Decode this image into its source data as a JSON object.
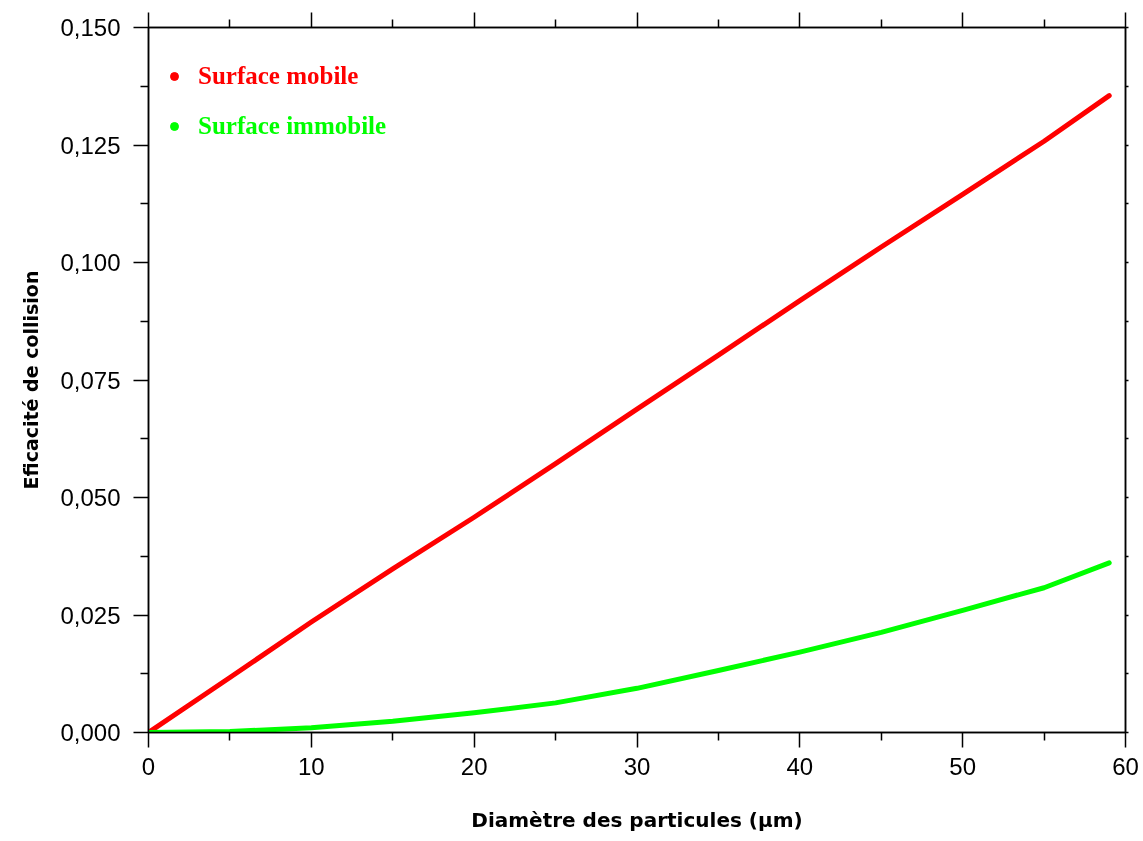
{
  "chart_data": {
    "type": "line",
    "xlabel": "Diamètre des particules (μm)",
    "ylabel": "Eficacité de collision",
    "xlim": [
      0,
      60
    ],
    "ylim": [
      0,
      0.15
    ],
    "xticks": [
      0,
      {
        "value": 5,
        "label": null
      },
      10,
      {
        "value": 15,
        "label": null
      },
      20,
      {
        "value": 25,
        "label": null
      },
      30,
      {
        "value": 35,
        "label": null
      },
      40,
      {
        "value": 45,
        "label": null
      },
      50,
      {
        "value": 55,
        "label": null
      },
      60
    ],
    "yticks": [
      {
        "value": 0,
        "label": "0,000"
      },
      {
        "value": 0.0125,
        "label": null
      },
      {
        "value": 0.025,
        "label": "0,025"
      },
      {
        "value": 0.0375,
        "label": null
      },
      {
        "value": 0.05,
        "label": "0,050"
      },
      {
        "value": 0.0625,
        "label": null
      },
      {
        "value": 0.075,
        "label": "0,075"
      },
      {
        "value": 0.0875,
        "label": null
      },
      {
        "value": 0.1,
        "label": "0,100"
      },
      {
        "value": 0.1125,
        "label": null
      },
      {
        "value": 0.125,
        "label": "0,125"
      },
      {
        "value": 0.1375,
        "label": null
      },
      {
        "value": 0.15,
        "label": "0,150"
      }
    ],
    "legend": "top left",
    "x": [
      0,
      5,
      10,
      15,
      20,
      25,
      30,
      35,
      40,
      45,
      50,
      55,
      59
    ],
    "series": [
      {
        "name": "Surface mobile",
        "color": "#ff0000",
        "values": [
          0,
          0.0117,
          0.0235,
          0.0348,
          0.0458,
          0.0572,
          0.0688,
          0.0803,
          0.0919,
          0.1033,
          0.1145,
          0.1258,
          0.1355
        ]
      },
      {
        "name": "Surface immobile",
        "color": "#00ff00",
        "values": [
          0,
          0.0002,
          0.001,
          0.0024,
          0.0042,
          0.0063,
          0.0094,
          0.0132,
          0.0171,
          0.0213,
          0.026,
          0.0308,
          0.0361
        ]
      }
    ]
  }
}
